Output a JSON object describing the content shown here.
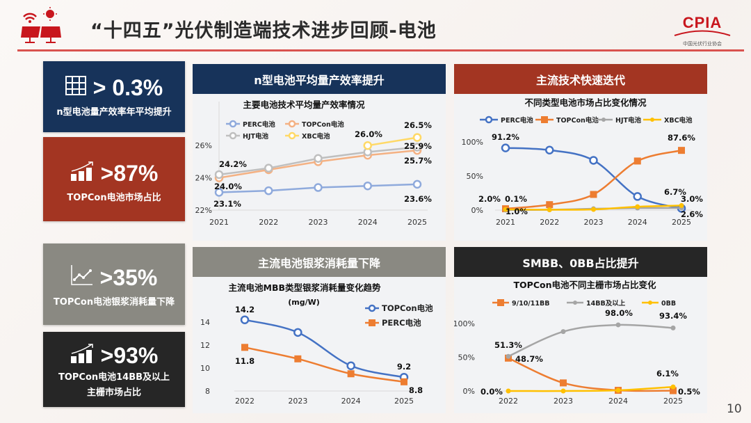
{
  "header": {
    "title": "“十四五”光伏制造端技术进步回顾-电池",
    "logo_text": "CPIA",
    "logo_sub": "中国光伏行业协会",
    "page_number": "10"
  },
  "kpis": [
    {
      "value": "> 0.3%",
      "label": "n型电池量产效率年平均提升",
      "icon": "solar-panel-grid-icon",
      "color": "#17335a"
    },
    {
      "value": ">87%",
      "label": "TOPCon电池市场占比",
      "icon": "growth-bar-chart-icon",
      "color": "#a33522"
    },
    {
      "value": ">35%",
      "label": "TOPCon电池银浆消耗量下降",
      "icon": "line-chart-icon",
      "color": "#8a8982"
    },
    {
      "value": ">93%",
      "label": "TOPCon电池14BB及以上主栅市场占比",
      "icon": "growth-bar-chart-icon",
      "color": "#262626"
    }
  ],
  "panels": [
    {
      "heading": "n型电池平均量产效率提升",
      "color": "#17335a"
    },
    {
      "heading": "主流技术快速迭代",
      "color": "#a33522"
    },
    {
      "heading": "主流电池银浆消耗量下降",
      "color": "#8a8982"
    },
    {
      "heading": "SMBB、0BB占比提升",
      "color": "#262626"
    }
  ],
  "chart_data": [
    {
      "type": "line",
      "title": "主要电池技术平均量产效率情况",
      "categories": [
        "2021",
        "2022",
        "2023",
        "2024",
        "2025"
      ],
      "ylim": [
        22,
        27
      ],
      "yticks": [
        "22%",
        "24%",
        "26%"
      ],
      "ytick_values": [
        22,
        24,
        26
      ],
      "legend": "top",
      "grid": false,
      "series": [
        {
          "name": "PERC电池",
          "color": "#8faadc",
          "marker": "circle",
          "values": [
            23.1,
            23.2,
            23.4,
            23.5,
            23.6
          ]
        },
        {
          "name": "TOPCon电池",
          "color": "#f4b183",
          "marker": "circle",
          "values": [
            24.0,
            24.5,
            25.0,
            25.4,
            25.7
          ]
        },
        {
          "name": "HJT电池",
          "color": "#bfbfbf",
          "marker": "circle",
          "values": [
            24.2,
            24.6,
            25.2,
            25.6,
            25.9
          ]
        },
        {
          "name": "XBC电池",
          "color": "#ffd966",
          "marker": "circle",
          "values": [
            null,
            null,
            null,
            26.0,
            26.5
          ]
        }
      ],
      "labels": [
        "24.2%",
        "24.0%",
        "23.1%",
        "26.0%",
        "26.5%",
        "25.9%",
        "25.7%",
        "23.6%"
      ]
    },
    {
      "type": "line",
      "title": "不同类型电池市场占比变化情况",
      "categories": [
        "2021",
        "2022",
        "2023",
        "2024",
        "2025"
      ],
      "ylim": [
        0,
        100
      ],
      "yticks": [
        "0%",
        "50%",
        "100%"
      ],
      "ytick_values": [
        0,
        50,
        100
      ],
      "legend": "top",
      "grid": false,
      "series": [
        {
          "name": "PERC电池",
          "color": "#4472c4",
          "marker": "circle",
          "values": [
            91.2,
            88,
            73,
            20,
            2.6
          ]
        },
        {
          "name": "TOPCon电池",
          "color": "#ed7d31",
          "marker": "square",
          "values": [
            2.0,
            8,
            23,
            72,
            87.6
          ]
        },
        {
          "name": "HJT电池",
          "color": "#a5a5a5",
          "marker": "dot",
          "values": [
            0.1,
            0.5,
            2,
            3,
            3.0
          ]
        },
        {
          "name": "XBC电池",
          "color": "#ffc000",
          "marker": "dot",
          "values": [
            1.0,
            0.5,
            1,
            5,
            6.7
          ]
        }
      ],
      "labels": [
        "91.2%",
        "87.6%",
        "2.0%",
        "0.1%",
        "1.0%",
        "6.7%",
        "3.0%",
        "2.6%"
      ]
    },
    {
      "type": "line",
      "title": "主流电池MBB类型银浆消耗量变化趋势",
      "unit": "(mg/W)",
      "categories": [
        "2022",
        "2023",
        "2024",
        "2025"
      ],
      "ylim": [
        8,
        14
      ],
      "yticks": [
        "8",
        "10",
        "12",
        "14"
      ],
      "ytick_values": [
        8,
        10,
        12,
        14
      ],
      "legend": "right",
      "grid": false,
      "series": [
        {
          "name": "TOPCon电池",
          "color": "#4472c4",
          "marker": "circle",
          "values": [
            14.2,
            13.1,
            10.2,
            9.2
          ]
        },
        {
          "name": "PERC电池",
          "color": "#ed7d31",
          "marker": "square",
          "values": [
            11.8,
            10.8,
            9.5,
            8.8
          ]
        }
      ],
      "labels": [
        "14.2",
        "11.8",
        "9.2",
        "8.8"
      ]
    },
    {
      "type": "line",
      "title": "TOPCon电池不同主栅市场占比变化",
      "categories": [
        "2022",
        "2023",
        "2024",
        "2025"
      ],
      "ylim": [
        0,
        100
      ],
      "yticks": [
        "0%",
        "50%",
        "100%"
      ],
      "ytick_values": [
        0,
        50,
        100
      ],
      "legend": "top",
      "grid": false,
      "series": [
        {
          "name": "9/10/11BB",
          "color": "#ed7d31",
          "marker": "square",
          "values": [
            48.7,
            12,
            1,
            0.5
          ]
        },
        {
          "name": "14BB及以上",
          "color": "#a5a5a5",
          "marker": "dot",
          "values": [
            51.3,
            88,
            98.0,
            93.4
          ]
        },
        {
          "name": "0BB",
          "color": "#ffc000",
          "marker": "dot",
          "values": [
            0.0,
            0,
            1,
            6.1
          ]
        }
      ],
      "labels": [
        "51.3%",
        "48.7%",
        "98.0%",
        "93.4%",
        "6.1%",
        "0.0%",
        "0.5%"
      ]
    }
  ]
}
